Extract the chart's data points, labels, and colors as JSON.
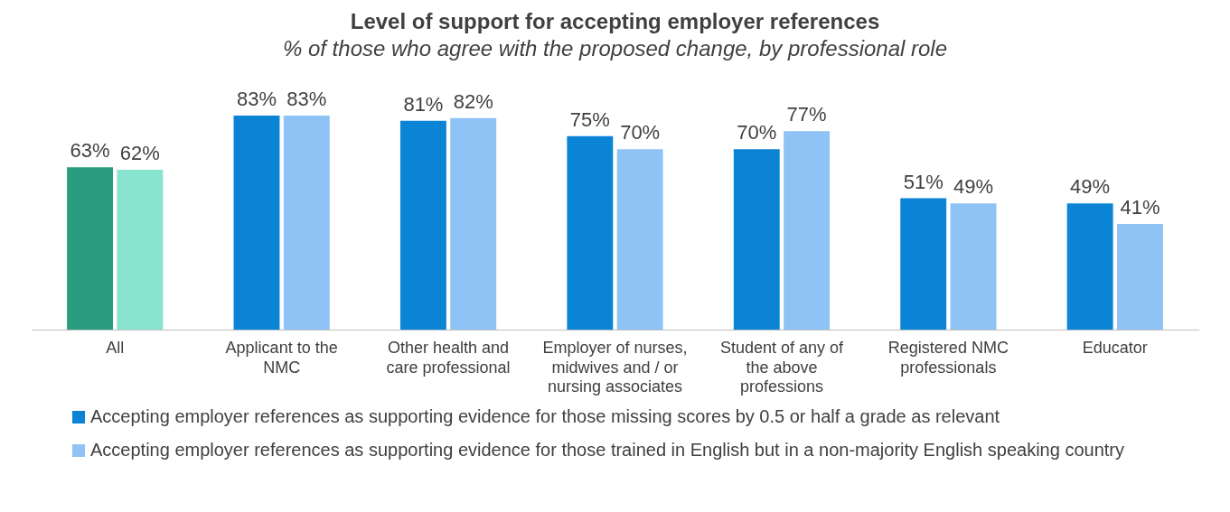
{
  "chart_data": {
    "type": "bar",
    "title": "Level of support for accepting employer references",
    "subtitle": "% of those who agree with the proposed change, by professional role",
    "categories": [
      "All",
      "Applicant to the NMC",
      "Other health and care professional",
      "Employer of nurses, midwives and / or nursing associates",
      "Student of any of the above professions",
      "Registered NMC professionals",
      "Educator"
    ],
    "series": [
      {
        "name": "Accepting employer references as supporting evidence for those missing scores by 0.5 or half a grade as relevant",
        "color": "#0b84d6",
        "colors": [
          "#2a9d80",
          "#0b84d6",
          "#0b84d6",
          "#0b84d6",
          "#0b84d6",
          "#0b84d6",
          "#0b84d6"
        ],
        "values": [
          63,
          83,
          81,
          75,
          70,
          51,
          49
        ],
        "value_labels": [
          "63%",
          "83%",
          "81%",
          "75%",
          "70%",
          "51%",
          "49%"
        ]
      },
      {
        "name": "Accepting employer references as supporting evidence for those trained in English but in a non-majority English speaking country",
        "color": "#8fc3f5",
        "colors": [
          "#88e3cf",
          "#8fc3f5",
          "#8fc3f5",
          "#8fc3f5",
          "#8fc3f5",
          "#8fc3f5",
          "#8fc3f5"
        ],
        "values": [
          62,
          83,
          82,
          70,
          77,
          49,
          41
        ],
        "value_labels": [
          "62%",
          "83%",
          "82%",
          "70%",
          "77%",
          "49%",
          "41%"
        ]
      }
    ],
    "tick_labels": "x",
    "grid": false,
    "legend": "bottom"
  }
}
